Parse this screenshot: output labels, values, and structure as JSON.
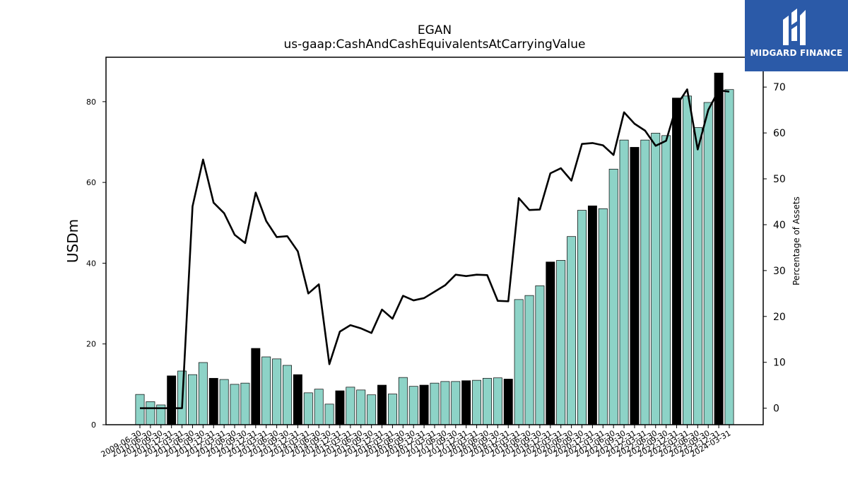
{
  "logo": {
    "text": "MIDGARD FINANCE",
    "icon": "midgard-m-logo-icon"
  },
  "colors": {
    "bar_default": "#8dd3c7",
    "bar_highlight": "#000000",
    "line": "#000000",
    "logo_bg": "#2b5aa8"
  },
  "chart_data": {
    "type": "bar",
    "title": "EGAN",
    "subtitle": "us-gaap:CashAndCashEquivalentsAtCarryingValue",
    "ylabel": "USDm",
    "y2label": "Percentage of Assets",
    "ylim": [
      0,
      91
    ],
    "y2lim": [
      -3.6,
      76.5
    ],
    "yticks": [
      0,
      20,
      40,
      60,
      80
    ],
    "y2ticks": [
      0,
      10,
      20,
      30,
      40,
      50,
      60,
      70
    ],
    "categories": [
      "2009-06-30",
      "2010-06-30",
      "2010-09-30",
      "2010-12-31",
      "2011-03-31",
      "2011-06-30",
      "2011-09-30",
      "2011-12-31",
      "2012-03-31",
      "2012-06-30",
      "2012-09-30",
      "2012-12-31",
      "2013-03-31",
      "2013-06-30",
      "2013-09-30",
      "2013-12-31",
      "2014-03-31",
      "2014-06-30",
      "2014-09-30",
      "2014-12-31",
      "2015-03-31",
      "2015-06-30",
      "2015-09-30",
      "2015-12-31",
      "2016-03-31",
      "2016-06-30",
      "2016-09-30",
      "2016-12-31",
      "2017-03-31",
      "2017-06-30",
      "2017-09-30",
      "2017-12-31",
      "2018-03-31",
      "2018-06-30",
      "2018-09-30",
      "2018-12-31",
      "2019-03-31",
      "2019-06-30",
      "2019-09-30",
      "2019-12-31",
      "2020-03-31",
      "2020-06-30",
      "2020-09-30",
      "2020-12-31",
      "2021-03-31",
      "2021-06-30",
      "2021-09-30",
      "2021-12-31",
      "2022-03-31",
      "2022-06-30",
      "2022-09-30",
      "2022-12-31",
      "2023-03-31",
      "2023-06-30",
      "2023-09-30",
      "2023-12-31",
      "2024-03-31"
    ],
    "series": [
      {
        "type": "bar",
        "values": [
          7.5,
          5.7,
          4.9,
          12.1,
          13.3,
          12.4,
          15.4,
          11.5,
          11.2,
          10.0,
          10.3,
          18.9,
          16.8,
          16.3,
          14.7,
          12.4,
          7.9,
          8.8,
          5.1,
          8.4,
          9.3,
          8.6,
          7.4,
          9.8,
          7.6,
          11.7,
          9.5,
          9.8,
          10.3,
          10.7,
          10.7,
          10.9,
          11.0,
          11.5,
          11.6,
          11.3,
          31.0,
          32.0,
          34.4,
          40.3,
          40.7,
          46.6,
          53.1,
          54.2,
          53.5,
          63.3,
          70.5,
          68.7,
          70.5,
          72.2,
          71.6,
          80.9,
          81.4,
          73.6,
          79.8,
          87.1,
          83.0
        ],
        "highlight": [
          false,
          false,
          false,
          true,
          false,
          false,
          false,
          true,
          false,
          false,
          false,
          true,
          false,
          false,
          false,
          true,
          false,
          false,
          false,
          true,
          false,
          false,
          false,
          true,
          false,
          false,
          false,
          true,
          false,
          false,
          false,
          true,
          false,
          false,
          false,
          true,
          false,
          false,
          false,
          true,
          false,
          false,
          false,
          true,
          false,
          false,
          false,
          true,
          false,
          false,
          false,
          true,
          false,
          false,
          false,
          true,
          false
        ]
      },
      {
        "type": "line",
        "axis": "right",
        "values": [
          0.0,
          0.0,
          0.0,
          0.0,
          0.0,
          44.0,
          54.2,
          44.8,
          42.5,
          37.8,
          36.0,
          47.0,
          40.8,
          37.3,
          37.5,
          34.2,
          25.0,
          27.0,
          9.6,
          16.7,
          18.1,
          17.4,
          16.4,
          21.5,
          19.5,
          24.5,
          23.5,
          24.0,
          25.4,
          26.8,
          29.1,
          28.8,
          29.1,
          29.0,
          23.4,
          23.3,
          45.8,
          43.2,
          43.3,
          51.2,
          52.3,
          49.6,
          57.6,
          57.8,
          57.3,
          55.2,
          64.5,
          62.0,
          60.5,
          57.2,
          58.3,
          66.0,
          69.5,
          56.4,
          65.0,
          69.3,
          69.0
        ]
      }
    ]
  }
}
